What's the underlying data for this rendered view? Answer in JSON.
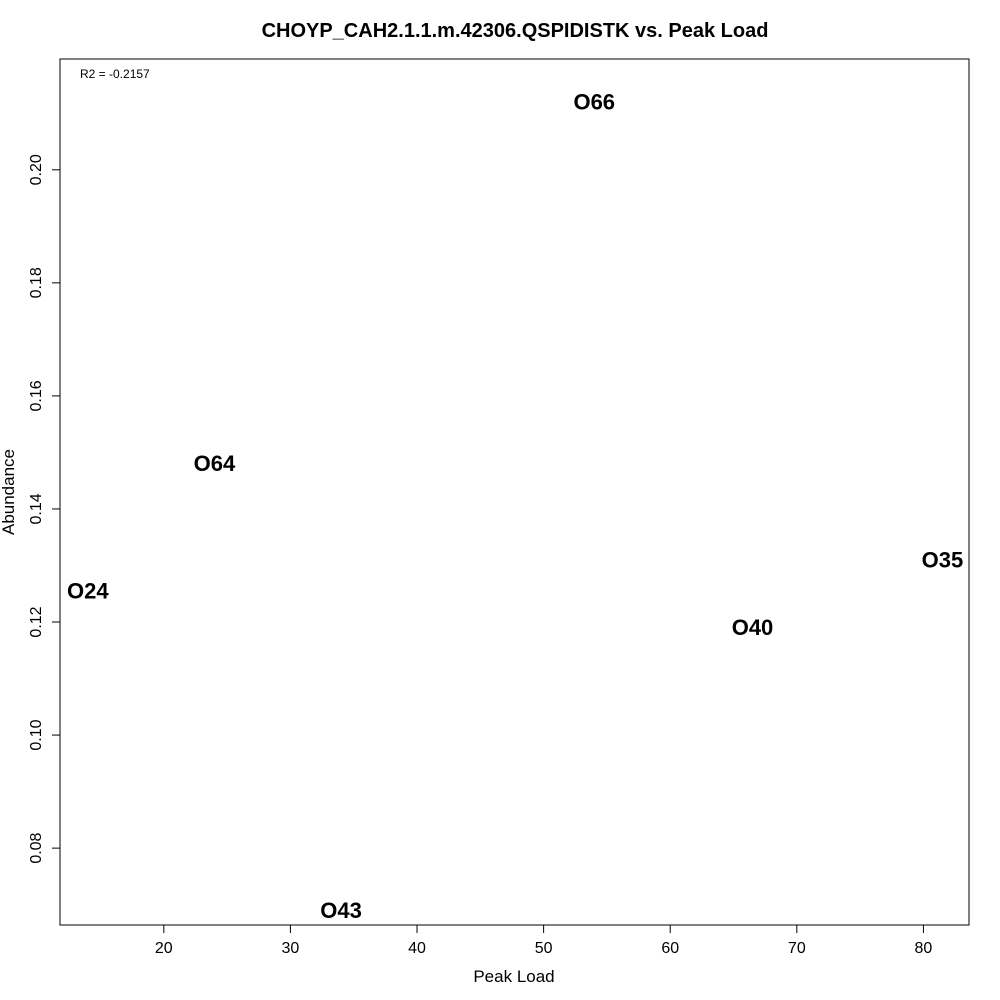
{
  "chart_data": {
    "type": "scatter",
    "title": "CHOYP_CAH2.1.1.m.42306.QSPIDISTK vs. Peak Load",
    "xlabel": "Peak Load",
    "ylabel": "Abundance",
    "xlim": [
      11.8,
      83.6
    ],
    "ylim": [
      0.0664,
      0.2196
    ],
    "xticks": [
      20,
      30,
      40,
      50,
      60,
      70,
      80
    ],
    "yticks": [
      0.08,
      0.1,
      0.12,
      0.14,
      0.16,
      0.18,
      0.2
    ],
    "xtick_labels": [
      "20",
      "30",
      "40",
      "50",
      "60",
      "70",
      "80"
    ],
    "ytick_labels": [
      "0.08",
      "0.10",
      "0.12",
      "0.14",
      "0.16",
      "0.18",
      "0.20"
    ],
    "annotation": "R2 = -0.2157",
    "grid": false,
    "points": [
      {
        "label": "O66",
        "x": 54,
        "y": 0.212
      },
      {
        "label": "O64",
        "x": 24,
        "y": 0.148
      },
      {
        "label": "O24",
        "x": 14,
        "y": 0.1255
      },
      {
        "label": "O35",
        "x": 81.5,
        "y": 0.131
      },
      {
        "label": "O40",
        "x": 66.5,
        "y": 0.119
      },
      {
        "label": "O43",
        "x": 34,
        "y": 0.069
      }
    ]
  }
}
